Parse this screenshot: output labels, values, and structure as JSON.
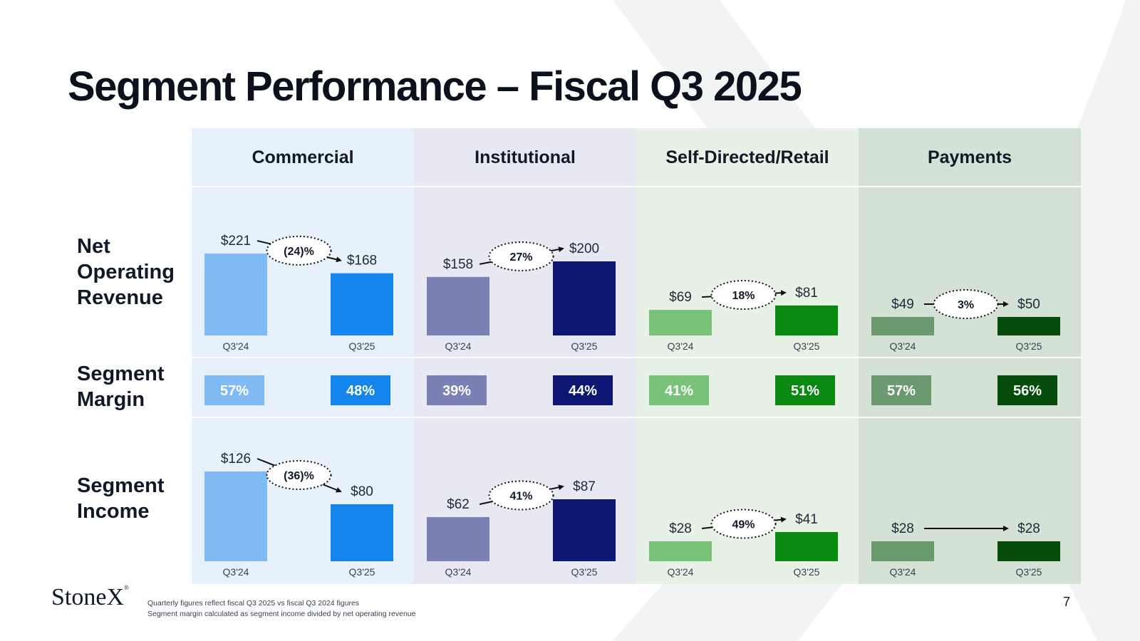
{
  "title": "Segment Performance – Fiscal Q3 2025",
  "row_labels": {
    "revenue": [
      "Net",
      "Operating",
      "Revenue"
    ],
    "margin": [
      "Segment",
      "Margin"
    ],
    "income": [
      "Segment",
      "Income"
    ]
  },
  "segments": [
    {
      "name": "Commercial",
      "bg_color": "#e7f1fb",
      "colors": {
        "prior": "#7fbaf5",
        "current": "#1585ee"
      },
      "revenue": {
        "prior": 221,
        "current": 168,
        "prior_label": "$221",
        "current_label": "$168",
        "change": "(24)%"
      },
      "margin": {
        "prior": "57%",
        "current": "48%"
      },
      "income": {
        "prior": 126,
        "current": 80,
        "prior_label": "$126",
        "current_label": "$80",
        "change": "(36)%"
      }
    },
    {
      "name": "Institutional",
      "bg_color": "#e8e8f3",
      "colors": {
        "prior": "#7b80b5",
        "current": "#0c1673"
      },
      "revenue": {
        "prior": 158,
        "current": 200,
        "prior_label": "$158",
        "current_label": "$200",
        "change": "27%"
      },
      "margin": {
        "prior": "39%",
        "current": "44%"
      },
      "income": {
        "prior": 62,
        "current": 87,
        "prior_label": "$62",
        "current_label": "$87",
        "change": "41%"
      }
    },
    {
      "name": "Self-Directed/Retail",
      "bg_color": "#e7f1e6",
      "colors": {
        "prior": "#79c27a",
        "current": "#0b8a11"
      },
      "revenue": {
        "prior": 69,
        "current": 81,
        "prior_label": "$69",
        "current_label": "$81",
        "change": "18%"
      },
      "margin": {
        "prior": "41%",
        "current": "51%"
      },
      "income": {
        "prior": 28,
        "current": 41,
        "prior_label": "$28",
        "current_label": "$41",
        "change": "49%"
      }
    },
    {
      "name": "Payments",
      "bg_color": "#d4e2d6",
      "colors": {
        "prior": "#6b9970",
        "current": "#064d0c"
      },
      "revenue": {
        "prior": 49,
        "current": 50,
        "prior_label": "$49",
        "current_label": "$50",
        "change": "3%"
      },
      "margin": {
        "prior": "57%",
        "current": "56%"
      },
      "income": {
        "prior": 28,
        "current": 28,
        "prior_label": "$28",
        "current_label": "$28",
        "change": ""
      }
    }
  ],
  "chart_data": [
    {
      "type": "bar",
      "title": "Net Operating Revenue",
      "categories": [
        "Commercial",
        "Institutional",
        "Self-Directed/Retail",
        "Payments"
      ],
      "series": [
        {
          "name": "Q3'24",
          "values": [
            221,
            158,
            69,
            49
          ]
        },
        {
          "name": "Q3'25",
          "values": [
            168,
            200,
            81,
            50
          ]
        }
      ],
      "change_labels": [
        "(24)%",
        "27%",
        "18%",
        "3%"
      ]
    },
    {
      "type": "table",
      "title": "Segment Margin",
      "categories": [
        "Commercial",
        "Institutional",
        "Self-Directed/Retail",
        "Payments"
      ],
      "series": [
        {
          "name": "Q3'24",
          "values": [
            "57%",
            "39%",
            "41%",
            "57%"
          ]
        },
        {
          "name": "Q3'25",
          "values": [
            "48%",
            "44%",
            "51%",
            "56%"
          ]
        }
      ]
    },
    {
      "type": "bar",
      "title": "Segment Income",
      "categories": [
        "Commercial",
        "Institutional",
        "Self-Directed/Retail",
        "Payments"
      ],
      "series": [
        {
          "name": "Q3'24",
          "values": [
            126,
            62,
            28,
            28
          ]
        },
        {
          "name": "Q3'25",
          "values": [
            80,
            87,
            41,
            28
          ]
        }
      ],
      "change_labels": [
        "(36)%",
        "41%",
        "49%",
        ""
      ]
    }
  ],
  "period_labels": {
    "prior": "Q3'24",
    "current": "Q3'25"
  },
  "logo_text": "StoneX",
  "logo_mark": "®",
  "footnotes": [
    "Quarterly figures reflect fiscal Q3 2025 vs fiscal Q3 2024 figures",
    "Segment margin calculated as segment income divided by net operating revenue"
  ],
  "page_number": "7"
}
